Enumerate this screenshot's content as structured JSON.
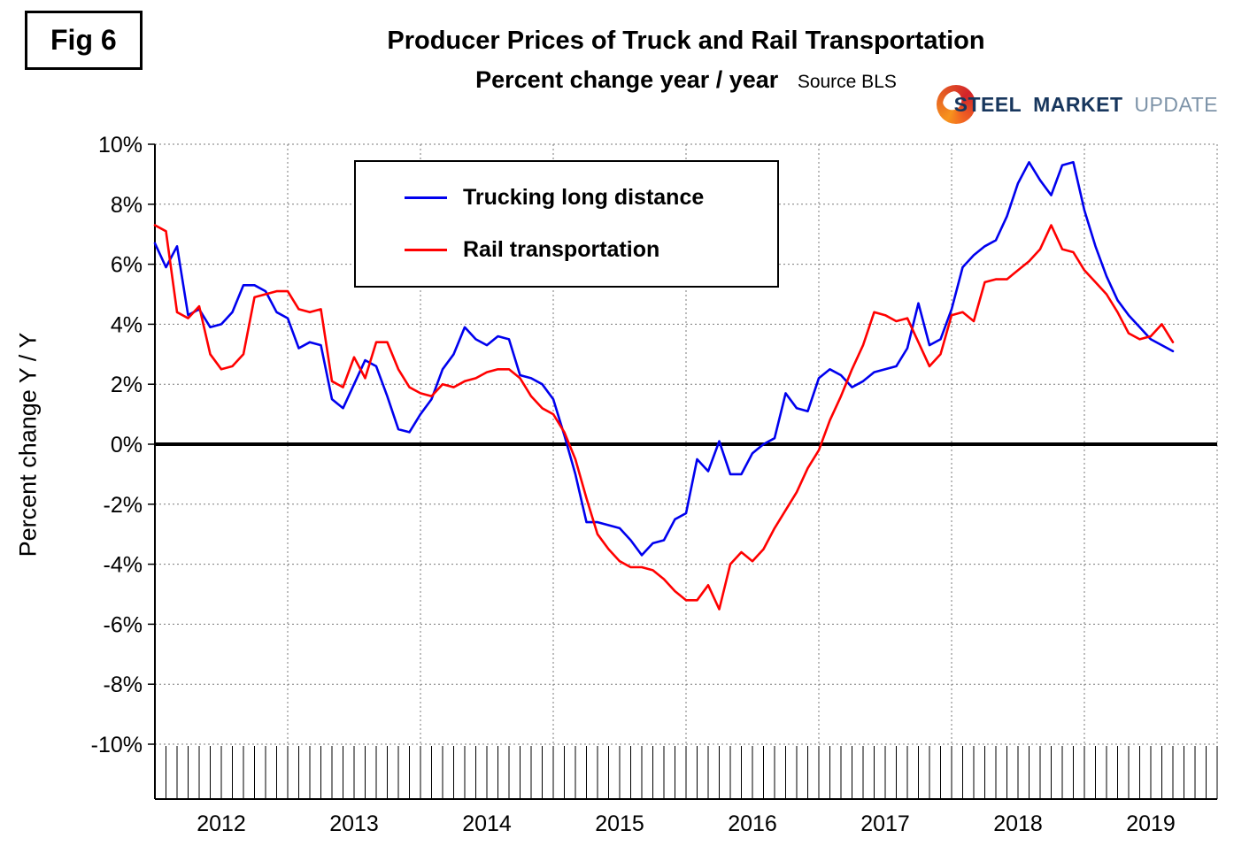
{
  "fig_label": "Fig 6",
  "title": "Producer Prices of Truck and Rail Transportation",
  "subtitle": "Percent change year / year",
  "source": "Source BLS",
  "logo": {
    "steel": "STEEL",
    "market": "MARKET",
    "update": "UPDATE"
  },
  "y_axis_label": "Percent change Y / Y",
  "chart_data": {
    "type": "line",
    "title": "Producer Prices of Truck and Rail Transportation",
    "subtitle": "Percent change year / year",
    "source": "Source BLS",
    "ylabel": "Percent change Y / Y",
    "ylim": [
      -10,
      10
    ],
    "y_tick_step": 2,
    "y_tick_values": [
      10,
      8,
      6,
      4,
      2,
      0,
      -2,
      -4,
      -6,
      -8,
      -10
    ],
    "y_tick_labels": [
      "10%",
      "8%",
      "6%",
      "4%",
      "2%",
      "0%",
      "-2%",
      "-4%",
      "-6%",
      "-8%",
      "-10%"
    ],
    "x_year_labels": [
      "2012",
      "2013",
      "2014",
      "2015",
      "2016",
      "2017",
      "2018",
      "2019"
    ],
    "start": "2012-01",
    "frequency": "monthly",
    "grid": "dotted",
    "legend_position": "top-center",
    "series": [
      {
        "name": "Trucking long distance",
        "color": "#0000ee",
        "values": [
          6.7,
          5.9,
          6.6,
          4.3,
          4.5,
          3.9,
          4.0,
          4.4,
          5.3,
          5.3,
          5.1,
          4.4,
          4.2,
          3.2,
          3.4,
          3.3,
          1.5,
          1.2,
          2.0,
          2.8,
          2.6,
          1.6,
          0.5,
          0.4,
          1.0,
          1.5,
          2.5,
          3.0,
          3.9,
          3.5,
          3.3,
          3.6,
          3.5,
          2.3,
          2.2,
          2.0,
          1.5,
          0.3,
          -1.0,
          -2.6,
          -2.6,
          -2.7,
          -2.8,
          -3.2,
          -3.7,
          -3.3,
          -3.2,
          -2.5,
          -2.3,
          -0.5,
          -0.9,
          0.1,
          -1.0,
          -1.0,
          -0.3,
          0.0,
          0.2,
          1.7,
          1.2,
          1.1,
          2.2,
          2.5,
          2.3,
          1.9,
          2.1,
          2.4,
          2.5,
          2.6,
          3.2,
          4.7,
          3.3,
          3.5,
          4.5,
          5.9,
          6.3,
          6.6,
          6.8,
          7.6,
          8.7,
          9.4,
          8.8,
          8.3,
          9.3,
          9.4,
          7.8,
          6.6,
          5.6,
          4.8,
          4.3,
          3.9,
          3.5,
          3.3,
          3.1
        ]
      },
      {
        "name": "Rail transportation",
        "color": "#ff0000",
        "values": [
          7.3,
          7.1,
          4.4,
          4.2,
          4.6,
          3.0,
          2.5,
          2.6,
          3.0,
          4.9,
          5.0,
          5.1,
          5.1,
          4.5,
          4.4,
          4.5,
          2.1,
          1.9,
          2.9,
          2.2,
          3.4,
          3.4,
          2.5,
          1.9,
          1.7,
          1.6,
          2.0,
          1.9,
          2.1,
          2.2,
          2.4,
          2.5,
          2.5,
          2.2,
          1.6,
          1.2,
          1.0,
          0.4,
          -0.5,
          -1.8,
          -3.0,
          -3.5,
          -3.9,
          -4.1,
          -4.1,
          -4.2,
          -4.5,
          -4.9,
          -5.2,
          -5.2,
          -4.7,
          -5.5,
          -4.0,
          -3.6,
          -3.9,
          -3.5,
          -2.8,
          -2.2,
          -1.6,
          -0.8,
          -0.2,
          0.8,
          1.6,
          2.5,
          3.3,
          4.4,
          4.3,
          4.1,
          4.2,
          3.4,
          2.6,
          3.0,
          4.3,
          4.4,
          4.1,
          5.4,
          5.5,
          5.5,
          5.8,
          6.1,
          6.5,
          7.3,
          6.5,
          6.4,
          5.8,
          5.4,
          5.0,
          4.4,
          3.7,
          3.5,
          3.6,
          4.0,
          3.4
        ]
      }
    ]
  }
}
